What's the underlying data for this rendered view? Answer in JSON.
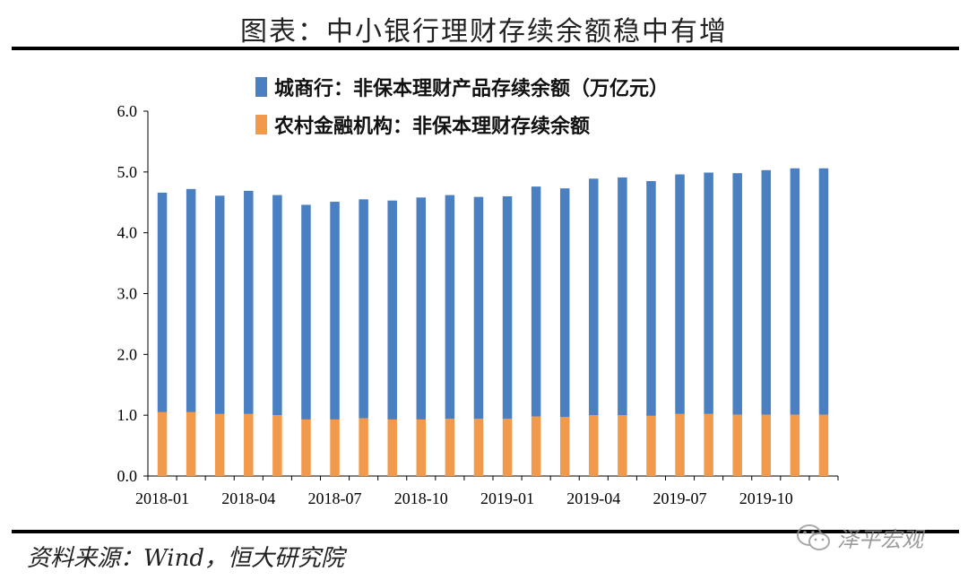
{
  "title": "图表：中小银行理财存续余额稳中有增",
  "source": "资料来源：Wind，恒大研究院",
  "brand": {
    "name": "泽平宏观",
    "logo_icon": "wechat-icon"
  },
  "colors": {
    "city_bank": "#4a7fc1",
    "rural_bank": "#f29a4c"
  },
  "chart_data": {
    "type": "bar",
    "stacked": true,
    "ylim": [
      0,
      6
    ],
    "yticks": [
      "0.0",
      "1.0",
      "2.0",
      "3.0",
      "4.0",
      "5.0",
      "6.0"
    ],
    "xtick_labels": [
      "2018-01",
      "2018-04",
      "2018-07",
      "2018-10",
      "2019-01",
      "2019-04",
      "2019-07",
      "2019-10"
    ],
    "categories": [
      "2018-01",
      "2018-02",
      "2018-03",
      "2018-04",
      "2018-05",
      "2018-06",
      "2018-07",
      "2018-08",
      "2018-09",
      "2018-10",
      "2018-11",
      "2018-12",
      "2019-01",
      "2019-02",
      "2019-03",
      "2019-04",
      "2019-05",
      "2019-06",
      "2019-07",
      "2019-08",
      "2019-09",
      "2019-10",
      "2019-11",
      "2019-12"
    ],
    "legend_position": "top-left",
    "grid": false,
    "series": [
      {
        "name": "农村金融机构：非保本理财存续余额",
        "color": "#f29a4c",
        "values": [
          1.05,
          1.05,
          1.02,
          1.02,
          1.0,
          0.93,
          0.93,
          0.95,
          0.93,
          0.93,
          0.94,
          0.94,
          0.94,
          0.98,
          0.97,
          1.0,
          1.0,
          0.99,
          1.02,
          1.02,
          1.01,
          1.01,
          1.01,
          1.01
        ]
      },
      {
        "name": "城商行：非保本理财产品存续余额（万亿元）",
        "color": "#4a7fc1",
        "values": [
          3.61,
          3.67,
          3.59,
          3.67,
          3.62,
          3.53,
          3.58,
          3.6,
          3.6,
          3.65,
          3.68,
          3.65,
          3.66,
          3.78,
          3.76,
          3.89,
          3.91,
          3.86,
          3.94,
          3.97,
          3.97,
          4.02,
          4.05,
          4.05
        ]
      }
    ]
  }
}
